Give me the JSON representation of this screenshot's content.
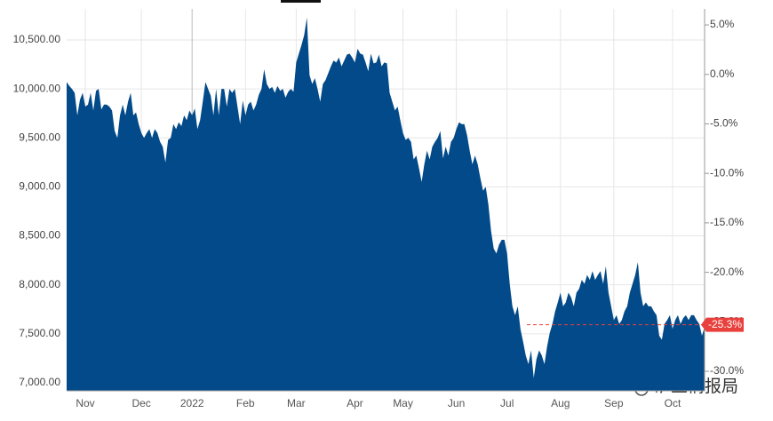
{
  "chart_data": {
    "type": "area",
    "color": "#024a89",
    "values": [
      10070,
      10030,
      10000,
      9960,
      9730,
      9890,
      9960,
      9820,
      9840,
      9960,
      9780,
      9980,
      10000,
      9790,
      9840,
      9840,
      9820,
      9780,
      9570,
      9500,
      9730,
      9840,
      9730,
      9870,
      9960,
      9730,
      9760,
      9640,
      9550,
      9500,
      9550,
      9590,
      9500,
      9590,
      9550,
      9460,
      9410,
      9250,
      9480,
      9500,
      9640,
      9590,
      9660,
      9620,
      9730,
      9680,
      9780,
      9730,
      9800,
      9590,
      9680,
      9870,
      10070,
      10000,
      9930,
      9730,
      10000,
      9730,
      10000,
      10000,
      9820,
      10000,
      9960,
      10000,
      9820,
      9640,
      9880,
      9730,
      9840,
      9870,
      9780,
      9840,
      9940,
      10000,
      10200,
      10050,
      10000,
      10020,
      9960,
      10030,
      9980,
      10000,
      9910,
      9970,
      10000,
      9970,
      10270,
      10360,
      10450,
      10550,
      10730,
      10140,
      10050,
      10110,
      10000,
      9870,
      10050,
      10090,
      10160,
      10230,
      10290,
      10270,
      10320,
      10230,
      10290,
      10350,
      10360,
      10320,
      10270,
      10410,
      10360,
      10350,
      10270,
      10180,
      10360,
      10260,
      10270,
      10350,
      10230,
      10270,
      10260,
      9960,
      9870,
      9780,
      9820,
      9680,
      9550,
      9480,
      9500,
      9460,
      9280,
      9320,
      9190,
      9050,
      9230,
      9370,
      9280,
      9410,
      9460,
      9500,
      9570,
      9290,
      9410,
      9320,
      9460,
      9500,
      9590,
      9660,
      9640,
      9640,
      9530,
      9370,
      9230,
      9320,
      9230,
      9090,
      8960,
      9000,
      8820,
      8550,
      8370,
      8320,
      8410,
      8460,
      8460,
      8320,
      8010,
      7780,
      7690,
      7780,
      7550,
      7420,
      7280,
      7190,
      7330,
      7050,
      7240,
      7330,
      7280,
      7190,
      7370,
      7510,
      7600,
      7730,
      7820,
      7920,
      7780,
      7820,
      7920,
      7870,
      7780,
      7920,
      7960,
      8050,
      8010,
      8100,
      8050,
      8140,
      8050,
      8100,
      8140,
      8010,
      8190,
      7920,
      7780,
      7640,
      7690,
      7600,
      7640,
      7730,
      7780,
      7920,
      8010,
      8100,
      8230,
      7920,
      7780,
      7820,
      7780,
      7780,
      7730,
      7690,
      7480,
      7440,
      7600,
      7640,
      7690,
      7550,
      7640,
      7690,
      7600,
      7660,
      7690,
      7640,
      7690,
      7690,
      7640,
      7600,
      7480,
      7570
    ],
    "xlim": [
      0,
      239
    ],
    "xticks": [
      {
        "value": 7,
        "label": "Nov"
      },
      {
        "value": 28,
        "label": "Dec"
      },
      {
        "value": 47,
        "label": "2022"
      },
      {
        "value": 67,
        "label": "Feb"
      },
      {
        "value": 86,
        "label": "Mar"
      },
      {
        "value": 108,
        "label": "Apr"
      },
      {
        "value": 126,
        "label": "May"
      },
      {
        "value": 146,
        "label": "Jun"
      },
      {
        "value": 165,
        "label": "Jul"
      },
      {
        "value": 185,
        "label": "Aug"
      },
      {
        "value": 205,
        "label": "Sep"
      },
      {
        "value": 227,
        "label": "Oct"
      }
    ],
    "ylim": [
      6918,
      10817
    ],
    "yticks": [
      {
        "value": 7000,
        "label": "7,000.00"
      },
      {
        "value": 7500,
        "label": "7,500.00"
      },
      {
        "value": 8000,
        "label": "8,000.00"
      },
      {
        "value": 8500,
        "label": "8,500.00"
      },
      {
        "value": 9000,
        "label": "9,000.00"
      },
      {
        "value": 9500,
        "label": "9,500.00"
      },
      {
        "value": 10000,
        "label": "10,000.00"
      },
      {
        "value": 10500,
        "label": "10,500.00"
      }
    ],
    "y2lim": [
      -31.97,
      6.62
    ],
    "y2ticks": [
      {
        "value": -30,
        "label": "-30.0%"
      },
      {
        "value": -25,
        "label": "-25.0%"
      },
      {
        "value": -20,
        "label": "-20.0%"
      },
      {
        "value": -15,
        "label": "-15.0%"
      },
      {
        "value": -10,
        "label": "-10.0%"
      },
      {
        "value": -5,
        "label": "-5.0%"
      },
      {
        "value": 0,
        "label": "0.0%"
      },
      {
        "value": 5,
        "label": "5.0%"
      }
    ],
    "current": {
      "value": -25.3,
      "label": "-25.3%",
      "color": "#e8403c"
    },
    "grid": true,
    "watermark": "矿业情报局"
  }
}
